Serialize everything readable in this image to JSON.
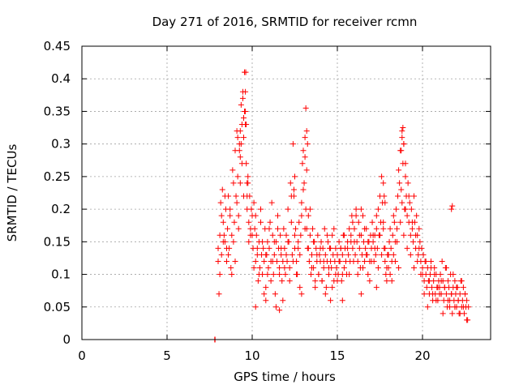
{
  "chart_data": {
    "type": "scatter",
    "title": "Day 271 of 2016, SRMTID for receiver rcmn",
    "xlabel": "GPS time / hours",
    "ylabel": "SRMTID / TECUs",
    "xlim": [
      0,
      24
    ],
    "ylim": [
      0,
      0.45
    ],
    "xticks": [
      0,
      5,
      10,
      15,
      20
    ],
    "xtick_labels": [
      "0",
      "5",
      "10",
      "15",
      "20"
    ],
    "yticks": [
      0,
      0.05,
      0.1,
      0.15,
      0.2,
      0.25,
      0.3,
      0.35,
      0.4,
      0.45
    ],
    "ytick_labels": [
      "0",
      "0.05",
      "0.1",
      "0.15",
      "0.2",
      "0.25",
      "0.3",
      "0.35",
      "0.4",
      "0.45"
    ],
    "grid": true,
    "legend": "none",
    "marker_color": "#ff0000",
    "marker": "plus",
    "series": [
      {
        "x": [
          7.8,
          7.82,
          8.0,
          8.05,
          8.1,
          8.15,
          8.2,
          8.25,
          8.3,
          8.35,
          8.4,
          8.45,
          8.5,
          8.55,
          8.6,
          8.65,
          8.7,
          8.75,
          8.8,
          8.85,
          8.9,
          8.95,
          9.0,
          9.05,
          9.1,
          9.15,
          9.2,
          9.25,
          9.3,
          9.35,
          9.4,
          9.45,
          9.5,
          9.55,
          9.6,
          9.65,
          9.7,
          9.75,
          9.8,
          9.85,
          9.9,
          9.95,
          10.0,
          10.05,
          10.1,
          10.15,
          10.2,
          10.25,
          10.3,
          10.35,
          10.4,
          10.45,
          10.5,
          10.55,
          10.6,
          10.65,
          10.7,
          10.75,
          10.8,
          10.85,
          10.9,
          10.95,
          11.0,
          11.05,
          11.1,
          11.15,
          11.2,
          11.25,
          11.3,
          11.35,
          11.4,
          11.45,
          11.5,
          11.55,
          11.6,
          11.65,
          11.7,
          11.75,
          11.8,
          11.85,
          11.9,
          11.95,
          12.0,
          12.05,
          12.1,
          12.15,
          12.2,
          12.25,
          12.3,
          12.35,
          12.4,
          12.45,
          12.5,
          12.55,
          12.6,
          12.65,
          12.7,
          12.75,
          12.8,
          12.85,
          12.9,
          12.95,
          13.0,
          13.05,
          13.1,
          13.15,
          13.2,
          13.25,
          13.3,
          13.35,
          13.4,
          13.45,
          13.5,
          13.55,
          13.6,
          13.65,
          13.7,
          13.75,
          13.8,
          13.85,
          13.9,
          13.95,
          14.0,
          14.05,
          14.1,
          14.15,
          14.2,
          14.25,
          14.3,
          14.35,
          14.4,
          14.45,
          14.5,
          14.55,
          14.6,
          14.65,
          14.7,
          14.75,
          14.8,
          14.85,
          14.9,
          14.95,
          15.0,
          15.05,
          15.1,
          15.15,
          15.2,
          15.25,
          15.3,
          15.35,
          15.4,
          15.45,
          15.5,
          15.55,
          15.6,
          15.65,
          15.7,
          15.75,
          15.8,
          15.85,
          15.9,
          15.95,
          16.0,
          16.05,
          16.1,
          16.15,
          16.2,
          16.25,
          16.3,
          16.35,
          16.4,
          16.45,
          16.5,
          16.55,
          16.6,
          16.65,
          16.7,
          16.75,
          16.8,
          16.85,
          16.9,
          16.95,
          17.0,
          17.05,
          17.1,
          17.15,
          17.2,
          17.25,
          17.3,
          17.35,
          17.4,
          17.45,
          17.5,
          17.55,
          17.6,
          17.65,
          17.7,
          17.75,
          17.8,
          17.85,
          17.9,
          17.95,
          18.0,
          18.05,
          18.1,
          18.15,
          18.2,
          18.25,
          18.3,
          18.35,
          18.4,
          18.45,
          18.5,
          18.55,
          18.6,
          18.65,
          18.7,
          18.75,
          18.8,
          18.85,
          18.9,
          18.95,
          19.0,
          19.05,
          19.1,
          19.15,
          19.2,
          19.25,
          19.3,
          19.35,
          19.4,
          19.45,
          19.5,
          19.55,
          19.6,
          19.65,
          19.7,
          19.75,
          19.8,
          19.85,
          19.9,
          19.95,
          20.0,
          20.05,
          20.1,
          20.15,
          20.2,
          20.25,
          20.3,
          20.35,
          20.4,
          20.45,
          20.5,
          20.55,
          20.6,
          20.65,
          20.7,
          20.75,
          20.8,
          20.85,
          20.9,
          20.95,
          21.0,
          21.05,
          21.1,
          21.15,
          21.2,
          21.25,
          21.3,
          21.35,
          21.4,
          21.45,
          21.5,
          21.55,
          21.6,
          21.65,
          21.7,
          21.75,
          21.8,
          21.85,
          21.9,
          21.95,
          22.0,
          22.05,
          22.1,
          22.15,
          22.2,
          22.25,
          22.3,
          22.35,
          22.4,
          22.45,
          22.5,
          22.55,
          22.6,
          22.65,
          22.7,
          8.0,
          8.1,
          8.2,
          8.3,
          8.4,
          8.5,
          8.6,
          8.7,
          8.8,
          8.9,
          9.0,
          9.1,
          9.2,
          9.3,
          9.4,
          9.5,
          9.6,
          9.7,
          9.8,
          9.9,
          10.0,
          10.1,
          10.2,
          10.3,
          10.4,
          10.5,
          10.6,
          10.7,
          10.8,
          10.9,
          11.0,
          11.1,
          11.2,
          11.3,
          11.4,
          11.5,
          11.6,
          11.7,
          11.8,
          11.9,
          12.0,
          12.1,
          12.2,
          12.3,
          12.4,
          12.5,
          12.6,
          12.7,
          12.8,
          12.9,
          13.0,
          13.1,
          13.2,
          13.3,
          13.4,
          13.5,
          13.6,
          13.7,
          13.8,
          13.9,
          14.0,
          14.1,
          14.2,
          14.3,
          14.4,
          14.5,
          14.6,
          14.7,
          14.8,
          14.9,
          15.0,
          15.1,
          15.2,
          15.3,
          15.4,
          15.5,
          15.6,
          15.7,
          15.8,
          15.9,
          16.0,
          16.1,
          16.2,
          16.3,
          16.4,
          16.5,
          16.6,
          16.7,
          16.8,
          16.9,
          17.0,
          17.1,
          17.2,
          17.3,
          17.4,
          17.5,
          17.6,
          17.7,
          17.8,
          17.9,
          18.0,
          18.1,
          18.2,
          18.3,
          18.4,
          18.5,
          18.6,
          18.7,
          18.8,
          18.9,
          19.0,
          19.1,
          19.2,
          19.3,
          19.4,
          19.5,
          19.6,
          19.7,
          19.8,
          19.9,
          20.0,
          20.1,
          20.2,
          20.3,
          20.4,
          20.5,
          20.6,
          20.7,
          20.8,
          20.9,
          21.0,
          21.1,
          21.2,
          21.3,
          21.4,
          21.5,
          21.6,
          21.7,
          21.8,
          21.9,
          22.0,
          22.1,
          22.2,
          22.3,
          22.4,
          22.5,
          22.6,
          9.55,
          9.6,
          9.62,
          9.65,
          9.5,
          9.45,
          9.3,
          9.35,
          9.25,
          9.15,
          9.7,
          9.75,
          13.15,
          13.2,
          13.25,
          13.1,
          12.5,
          12.45,
          17.7,
          17.75,
          17.8,
          18.75,
          18.8,
          18.85,
          18.9,
          19.0,
          21.7,
          21.75,
          10.2,
          10.8,
          11.6,
          12.9,
          14.6,
          15.3,
          16.4,
          17.3
        ],
        "y": [
          0.0,
          0.0,
          0.14,
          0.07,
          0.16,
          0.21,
          0.13,
          0.23,
          0.18,
          0.16,
          0.15,
          0.2,
          0.12,
          0.17,
          0.22,
          0.14,
          0.19,
          0.11,
          0.16,
          0.26,
          0.24,
          0.18,
          0.29,
          0.22,
          0.32,
          0.25,
          0.17,
          0.3,
          0.28,
          0.36,
          0.33,
          0.38,
          0.31,
          0.41,
          0.35,
          0.27,
          0.2,
          0.24,
          0.18,
          0.22,
          0.16,
          0.2,
          0.19,
          0.14,
          0.21,
          0.17,
          0.12,
          0.16,
          0.13,
          0.09,
          0.15,
          0.11,
          0.18,
          0.13,
          0.1,
          0.14,
          0.12,
          0.17,
          0.08,
          0.13,
          0.15,
          0.11,
          0.14,
          0.18,
          0.12,
          0.21,
          0.16,
          0.1,
          0.13,
          0.07,
          0.15,
          0.12,
          0.19,
          0.14,
          0.11,
          0.16,
          0.13,
          0.09,
          0.12,
          0.17,
          0.14,
          0.1,
          0.16,
          0.12,
          0.2,
          0.15,
          0.11,
          0.24,
          0.18,
          0.13,
          0.3,
          0.22,
          0.14,
          0.17,
          0.12,
          0.1,
          0.15,
          0.18,
          0.13,
          0.16,
          0.21,
          0.27,
          0.29,
          0.24,
          0.31,
          0.2,
          0.17,
          0.14,
          0.19,
          0.12,
          0.16,
          0.1,
          0.13,
          0.17,
          0.11,
          0.15,
          0.09,
          0.14,
          0.12,
          0.16,
          0.1,
          0.13,
          0.12,
          0.15,
          0.09,
          0.14,
          0.11,
          0.17,
          0.13,
          0.08,
          0.12,
          0.15,
          0.1,
          0.14,
          0.12,
          0.11,
          0.16,
          0.13,
          0.09,
          0.12,
          0.14,
          0.11,
          0.13,
          0.1,
          0.15,
          0.12,
          0.14,
          0.09,
          0.13,
          0.16,
          0.11,
          0.14,
          0.12,
          0.1,
          0.15,
          0.13,
          0.17,
          0.12,
          0.16,
          0.19,
          0.14,
          0.12,
          0.17,
          0.13,
          0.2,
          0.15,
          0.12,
          0.18,
          0.14,
          0.11,
          0.16,
          0.13,
          0.19,
          0.15,
          0.12,
          0.14,
          0.17,
          0.13,
          0.1,
          0.15,
          0.12,
          0.16,
          0.14,
          0.18,
          0.15,
          0.12,
          0.16,
          0.13,
          0.17,
          0.14,
          0.2,
          0.16,
          0.22,
          0.18,
          0.25,
          0.21,
          0.17,
          0.14,
          0.12,
          0.1,
          0.09,
          0.13,
          0.11,
          0.15,
          0.1,
          0.14,
          0.12,
          0.16,
          0.13,
          0.18,
          0.15,
          0.2,
          0.17,
          0.22,
          0.26,
          0.24,
          0.29,
          0.23,
          0.32,
          0.27,
          0.3,
          0.2,
          0.25,
          0.22,
          0.19,
          0.24,
          0.18,
          0.21,
          0.16,
          0.2,
          0.17,
          0.15,
          0.22,
          0.18,
          0.14,
          0.19,
          0.16,
          0.13,
          0.17,
          0.15,
          0.12,
          0.14,
          0.11,
          0.13,
          0.09,
          0.12,
          0.1,
          0.08,
          0.11,
          0.09,
          0.07,
          0.1,
          0.12,
          0.08,
          0.06,
          0.09,
          0.11,
          0.07,
          0.1,
          0.08,
          0.06,
          0.09,
          0.08,
          0.1,
          0.07,
          0.12,
          0.09,
          0.06,
          0.08,
          0.11,
          0.07,
          0.05,
          0.09,
          0.08,
          0.06,
          0.1,
          0.07,
          0.04,
          0.08,
          0.06,
          0.09,
          0.07,
          0.05,
          0.08,
          0.06,
          0.04,
          0.07,
          0.09,
          0.05,
          0.06,
          0.08,
          0.04,
          0.07,
          0.05,
          0.06,
          0.03,
          0.05,
          0.12,
          0.1,
          0.19,
          0.15,
          0.22,
          0.14,
          0.13,
          0.2,
          0.1,
          0.15,
          0.12,
          0.21,
          0.19,
          0.24,
          0.27,
          0.22,
          0.33,
          0.24,
          0.15,
          0.17,
          0.16,
          0.11,
          0.19,
          0.14,
          0.1,
          0.2,
          0.15,
          0.07,
          0.13,
          0.1,
          0.17,
          0.09,
          0.12,
          0.15,
          0.05,
          0.17,
          0.1,
          0.14,
          0.06,
          0.11,
          0.13,
          0.15,
          0.09,
          0.22,
          0.12,
          0.16,
          0.1,
          0.14,
          0.08,
          0.19,
          0.23,
          0.17,
          0.26,
          0.14,
          0.2,
          0.11,
          0.15,
          0.08,
          0.13,
          0.1,
          0.14,
          0.09,
          0.12,
          0.07,
          0.16,
          0.11,
          0.14,
          0.08,
          0.17,
          0.1,
          0.09,
          0.12,
          0.14,
          0.1,
          0.16,
          0.12,
          0.14,
          0.1,
          0.15,
          0.18,
          0.15,
          0.19,
          0.1,
          0.16,
          0.2,
          0.11,
          0.17,
          0.13,
          0.15,
          0.09,
          0.12,
          0.16,
          0.14,
          0.19,
          0.11,
          0.16,
          0.13,
          0.18,
          0.14,
          0.11,
          0.13,
          0.17,
          0.09,
          0.19,
          0.12,
          0.15,
          0.11,
          0.18,
          0.21,
          0.16,
          0.2,
          0.14,
          0.22,
          0.13,
          0.18,
          0.11,
          0.16,
          0.12,
          0.14,
          0.1,
          0.1,
          0.07,
          0.12,
          0.05,
          0.09,
          0.11,
          0.07,
          0.1,
          0.06,
          0.08,
          0.07,
          0.09,
          0.04,
          0.08,
          0.11,
          0.06,
          0.05,
          0.07,
          0.1,
          0.05,
          0.08,
          0.06,
          0.04,
          0.09,
          0.05,
          0.07,
          0.03,
          0.35,
          0.38,
          0.41,
          0.33,
          0.34,
          0.37,
          0.32,
          0.3,
          0.29,
          0.31,
          0.22,
          0.25,
          0.355,
          0.32,
          0.3,
          0.28,
          0.25,
          0.23,
          0.24,
          0.22,
          0.21,
          0.29,
          0.31,
          0.325,
          0.3,
          0.27,
          0.2,
          0.205,
          0.05,
          0.06,
          0.045,
          0.07,
          0.06,
          0.06,
          0.07,
          0.08
        ]
      }
    ]
  }
}
